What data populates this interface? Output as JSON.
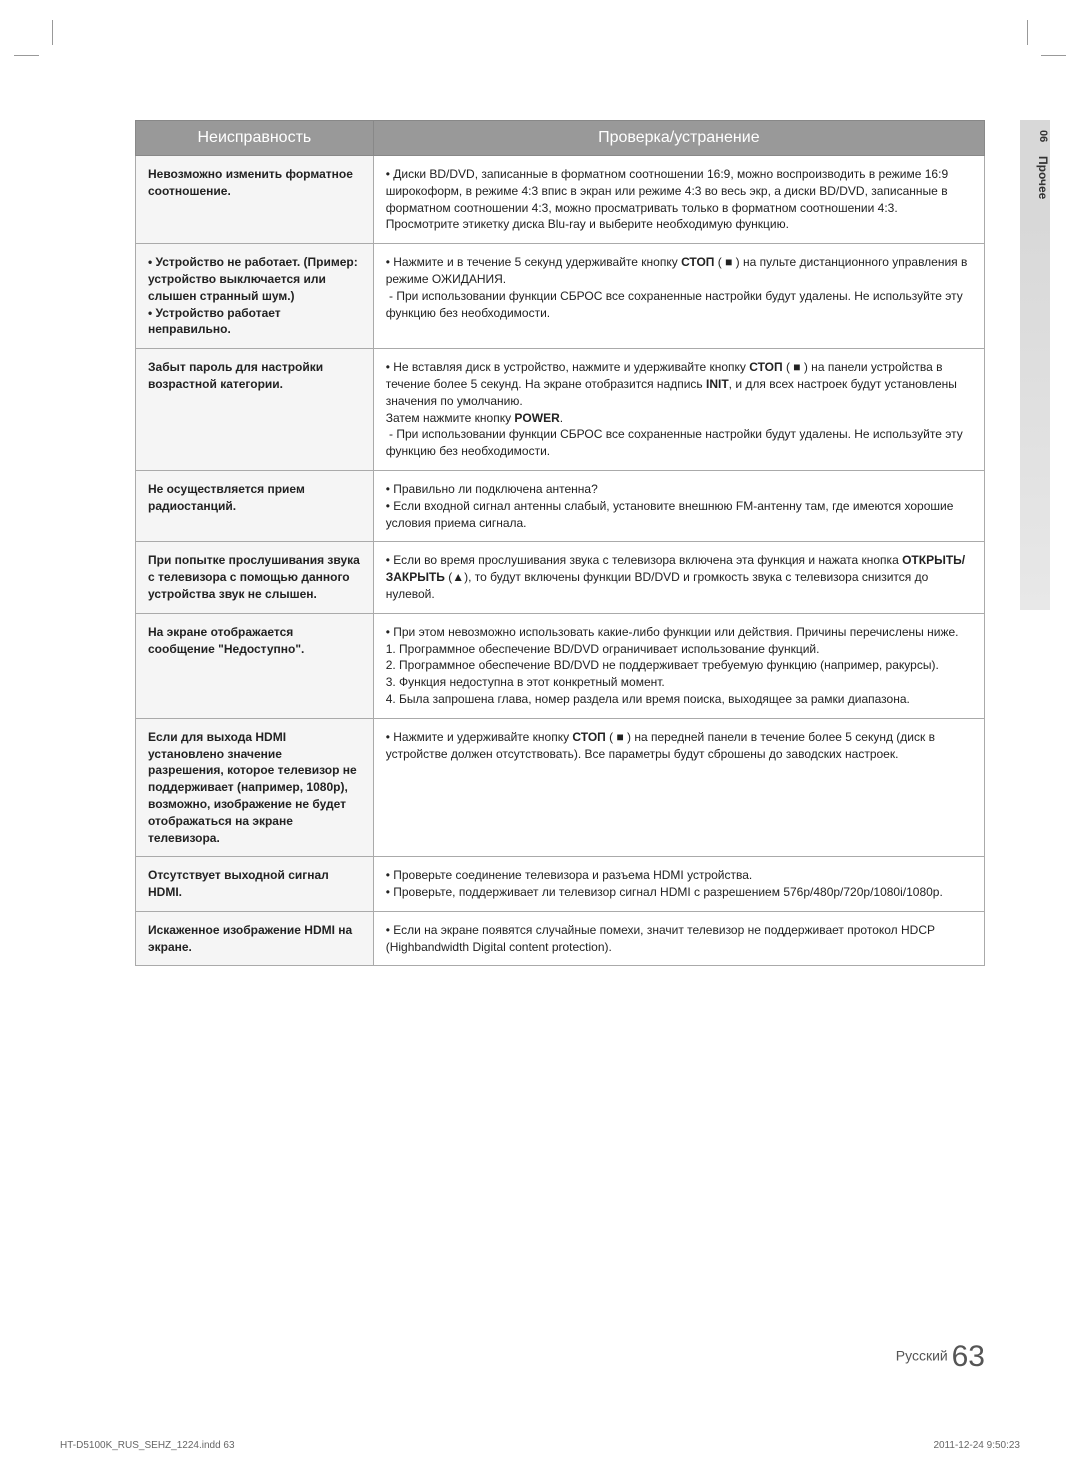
{
  "sideTab": {
    "number": "06",
    "label": "Прочее"
  },
  "table": {
    "headers": [
      "Неисправность",
      "Проверка/устранение"
    ],
    "rows": [
      {
        "issue": "Невозможно изменить форматное соотношение.",
        "fix": "• Диски BD/DVD, записанные в форматном соотношении 16:9, можно воспроизводить в режиме 16:9 широкоформ, в режиме 4:3 впис в экран или режиме 4:3 во весь экр, а диски BD/DVD, записанные в форматном соотношении 4:3, можно просматривать только в форматном соотношении 4:3. Просмотрите этикетку диска Blu-ray и выберите необходимую функцию."
      },
      {
        "issue": "• Устройство не работает. (Пример: устройство выключается или слышен странный шум.)\n• Устройство работает неправильно.",
        "fix_html": "• Нажмите и в течение 5 секунд удерживайте кнопку <b>СТОП</b> ( ■ ) на пульте дистанционного управления в режиме ОЖИДАНИЯ.<br>&nbsp;- При использовании функции СБРОС все сохраненные настройки будут удалены. Не используйте эту функцию без необходимости."
      },
      {
        "issue": "Забыт пароль для настройки возрастной категории.",
        "fix_html": "• Не вставляя диск в устройство, нажмите и удерживайте кнопку <b>СТОП</b> ( ■ ) на панели устройства в течение более 5 секунд. На экране отобразится надпись <b>INIT</b>, и для всех настроек будут установлены значения по умолчанию.<br>Затем нажмите кнопку <b>POWER</b>.<br>&nbsp;- При использовании функции СБРОС все сохраненные настройки будут удалены. Не используйте эту функцию без необходимости."
      },
      {
        "issue": "Не осуществляется прием радиостанций.",
        "fix": "• Правильно ли подключена антенна?\n• Если входной сигнал антенны слабый, установите внешнюю FM-антенну там, где имеются хорошие условия приема сигнала."
      },
      {
        "issue": "При попытке прослушивания звука с телевизора с помощью данного устройства звук не слышен.",
        "fix_html": "• Если во время прослушивания звука с телевизора включена эта функция и нажата кнопка <b>ОТКРЫТЬ/ЗАКРЫТЬ</b> (▲), то будут включены функции BD/DVD и громкость звука с телевизора снизится до нулевой."
      },
      {
        "issue": "На экране отображается сообщение \"Недоступно\".",
        "fix": "• При этом невозможно использовать какие-либо функции или действия. Причины перечислены ниже.\n  1. Программное обеспечение BD/DVD ограничивает использование функций.\n  2. Программное обеспечение BD/DVD не поддерживает требуемую функцию (например, ракурсы).\n  3. Функция недоступна в этот конкретный момент.\n  4. Была запрошена глава, номер раздела или время поиска, выходящее за рамки диапазона."
      },
      {
        "issue": "Если для выхода HDMI установлено значение разрешения, которое телевизор не поддерживает (например, 1080p), возможно, изображение не будет отображаться на экране телевизора.",
        "fix_html": "• Нажмите и удерживайте кнопку <b>СТОП</b> ( ■ ) на передней панели в течение более 5 секунд (диск в устройстве должен отсутствовать). Все параметры будут сброшены до заводских настроек."
      },
      {
        "issue": "Отсутствует выходной сигнал HDMI.",
        "fix": "• Проверьте соединение телевизора и разъема HDMI устройства.\n• Проверьте, поддерживает ли телевизор сигнал HDMI с разрешением 576p/480p/720p/1080i/1080p."
      },
      {
        "issue": "Искаженное изображение HDMI на экране.",
        "fix": "• Если на экране появятся случайные помехи, значит телевизор не поддерживает протокол HDCP (Highbandwidth Digital content protection)."
      }
    ]
  },
  "footer": {
    "language": "Русский",
    "pageNumber": "63"
  },
  "printFooter": {
    "left": "HT-D5100K_RUS_SEHZ_1224.indd   63",
    "right": "2011-12-24      9:50:23"
  }
}
